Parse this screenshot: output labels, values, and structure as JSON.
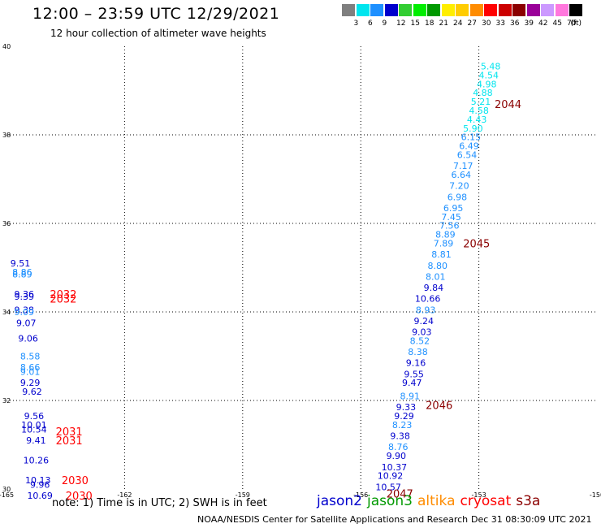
{
  "header": {
    "title": "12:00 – 23:59 UTC 12/29/2021",
    "subtitle": "12 hour collection of altimeter wave heights"
  },
  "color_scale": {
    "unit_label": "(ft)",
    "bins": [
      {
        "label": "3",
        "color": "#7f7f7f"
      },
      {
        "label": "6",
        "color": "#00e5ee"
      },
      {
        "label": "9",
        "color": "#1e90ff"
      },
      {
        "label": "12",
        "color": "#0000cd"
      },
      {
        "label": "15",
        "color": "#32cd32"
      },
      {
        "label": "18",
        "color": "#00ee00"
      },
      {
        "label": "21",
        "color": "#009900"
      },
      {
        "label": "24",
        "color": "#ffee00"
      },
      {
        "label": "27",
        "color": "#ffcc00"
      },
      {
        "label": "30",
        "color": "#ff8c00"
      },
      {
        "label": "33",
        "color": "#ff0000"
      },
      {
        "label": "36",
        "color": "#cc0000"
      },
      {
        "label": "39",
        "color": "#8b0000"
      },
      {
        "label": "42",
        "color": "#9a0099"
      },
      {
        "label": "45",
        "color": "#cc99ff"
      },
      {
        "label": "70",
        "color": "#ff77dd"
      },
      {
        "label": "",
        "color": "#000000"
      }
    ]
  },
  "chart_data": {
    "type": "scatter",
    "title": "12:00 – 23:59 UTC 12/29/2021",
    "xlim": [
      -165,
      -150
    ],
    "ylim": [
      30,
      40
    ],
    "x_ticks": [
      {
        "value": -165,
        "label": "-165"
      },
      {
        "value": -162,
        "label": "-162"
      },
      {
        "value": -159,
        "label": "-159"
      },
      {
        "value": -156,
        "label": "-156"
      },
      {
        "value": -153,
        "label": "-153"
      },
      {
        "value": -150,
        "label": "-150"
      }
    ],
    "y_ticks": [
      {
        "value": 30,
        "label": "30"
      },
      {
        "value": 32,
        "label": "32"
      },
      {
        "value": 34,
        "label": "34"
      },
      {
        "value": 36,
        "label": "36"
      },
      {
        "value": 38,
        "label": "38"
      },
      {
        "value": 40,
        "label": "40"
      }
    ],
    "grid": true,
    "points": [
      {
        "lon": -152.7,
        "lat": 39.55,
        "swh": "5.48",
        "color": "#00e5ee"
      },
      {
        "lon": -152.75,
        "lat": 39.35,
        "swh": "4.54",
        "color": "#00e5ee"
      },
      {
        "lon": -152.8,
        "lat": 39.15,
        "swh": "4.98",
        "color": "#00e5ee"
      },
      {
        "lon": -152.9,
        "lat": 38.95,
        "swh": "4.88",
        "color": "#00e5ee"
      },
      {
        "lon": -152.95,
        "lat": 38.75,
        "swh": "5.21",
        "color": "#00e5ee"
      },
      {
        "lon": -153.0,
        "lat": 38.55,
        "swh": "4.58",
        "color": "#00e5ee"
      },
      {
        "lon": -153.05,
        "lat": 38.35,
        "swh": "4.43",
        "color": "#00e5ee"
      },
      {
        "lon": -153.15,
        "lat": 38.15,
        "swh": "5.90",
        "color": "#00e5ee"
      },
      {
        "lon": -153.2,
        "lat": 37.95,
        "swh": "6.15",
        "color": "#1e90ff"
      },
      {
        "lon": -153.25,
        "lat": 37.75,
        "swh": "6.49",
        "color": "#1e90ff"
      },
      {
        "lon": -153.3,
        "lat": 37.55,
        "swh": "6.54",
        "color": "#1e90ff"
      },
      {
        "lon": -153.4,
        "lat": 37.3,
        "swh": "7.17",
        "color": "#1e90ff"
      },
      {
        "lon": -153.45,
        "lat": 37.1,
        "swh": "6.64",
        "color": "#1e90ff"
      },
      {
        "lon": -153.5,
        "lat": 36.85,
        "swh": "7.20",
        "color": "#1e90ff"
      },
      {
        "lon": -153.55,
        "lat": 36.6,
        "swh": "6.98",
        "color": "#1e90ff"
      },
      {
        "lon": -153.65,
        "lat": 36.35,
        "swh": "6.95",
        "color": "#1e90ff"
      },
      {
        "lon": -153.7,
        "lat": 36.15,
        "swh": "7.45",
        "color": "#1e90ff"
      },
      {
        "lon": -153.75,
        "lat": 35.95,
        "swh": "7.56",
        "color": "#1e90ff"
      },
      {
        "lon": -153.85,
        "lat": 35.75,
        "swh": "8.89",
        "color": "#1e90ff"
      },
      {
        "lon": -153.9,
        "lat": 35.55,
        "swh": "7.89",
        "color": "#1e90ff"
      },
      {
        "lon": -153.95,
        "lat": 35.3,
        "swh": "8.81",
        "color": "#1e90ff"
      },
      {
        "lon": -154.05,
        "lat": 35.05,
        "swh": "8.80",
        "color": "#1e90ff"
      },
      {
        "lon": -154.1,
        "lat": 34.8,
        "swh": "8.01",
        "color": "#1e90ff"
      },
      {
        "lon": -154.15,
        "lat": 34.55,
        "swh": "9.84",
        "color": "#0000cd"
      },
      {
        "lon": -154.3,
        "lat": 34.3,
        "swh": "10.66",
        "color": "#0000cd"
      },
      {
        "lon": -154.35,
        "lat": 34.05,
        "swh": "8.93",
        "color": "#1e90ff"
      },
      {
        "lon": -154.4,
        "lat": 33.8,
        "swh": "9.24",
        "color": "#0000cd"
      },
      {
        "lon": -154.45,
        "lat": 33.55,
        "swh": "9.03",
        "color": "#0000cd"
      },
      {
        "lon": -154.5,
        "lat": 33.35,
        "swh": "8.52",
        "color": "#1e90ff"
      },
      {
        "lon": -154.55,
        "lat": 33.1,
        "swh": "8.38",
        "color": "#1e90ff"
      },
      {
        "lon": -154.6,
        "lat": 32.85,
        "swh": "9.16",
        "color": "#0000cd"
      },
      {
        "lon": -154.65,
        "lat": 32.6,
        "swh": "9.55",
        "color": "#0000cd"
      },
      {
        "lon": -154.7,
        "lat": 32.4,
        "swh": "9.47",
        "color": "#0000cd"
      },
      {
        "lon": -154.75,
        "lat": 32.1,
        "swh": "8.91",
        "color": "#1e90ff"
      },
      {
        "lon": -154.85,
        "lat": 31.85,
        "swh": "9.33",
        "color": "#0000cd"
      },
      {
        "lon": -154.9,
        "lat": 31.65,
        "swh": "9.29",
        "color": "#0000cd"
      },
      {
        "lon": -154.95,
        "lat": 31.45,
        "swh": "8.23",
        "color": "#1e90ff"
      },
      {
        "lon": -155.0,
        "lat": 31.2,
        "swh": "9.38",
        "color": "#0000cd"
      },
      {
        "lon": -155.05,
        "lat": 30.95,
        "swh": "8.76",
        "color": "#1e90ff"
      },
      {
        "lon": -155.1,
        "lat": 30.75,
        "swh": "9.90",
        "color": "#0000cd"
      },
      {
        "lon": -155.15,
        "lat": 30.5,
        "swh": "10.37",
        "color": "#0000cd"
      },
      {
        "lon": -155.25,
        "lat": 30.3,
        "swh": "10.92",
        "color": "#0000cd"
      },
      {
        "lon": -155.3,
        "lat": 30.05,
        "swh": "10.57",
        "color": "#0000cd"
      },
      {
        "lon": -164.65,
        "lat": 35.1,
        "swh": "9.51",
        "color": "#0000cd"
      },
      {
        "lon": -164.6,
        "lat": 34.9,
        "swh": "8.86",
        "color": "#1e90ff"
      },
      {
        "lon": -164.6,
        "lat": 34.85,
        "swh": "8.89",
        "color": "#1e90ff"
      },
      {
        "lon": -164.55,
        "lat": 34.4,
        "swh": "9.36",
        "color": "#0000cd"
      },
      {
        "lon": -164.55,
        "lat": 34.35,
        "swh": "9.39",
        "color": "#0000cd"
      },
      {
        "lon": -164.55,
        "lat": 34.05,
        "swh": "9.38",
        "color": "#0000cd"
      },
      {
        "lon": -164.55,
        "lat": 34.0,
        "swh": "9.09",
        "color": "#1e90ff"
      },
      {
        "lon": -164.5,
        "lat": 33.75,
        "swh": "9.07",
        "color": "#0000cd"
      },
      {
        "lon": -164.45,
        "lat": 33.4,
        "swh": "9.06",
        "color": "#0000cd"
      },
      {
        "lon": -164.4,
        "lat": 33.0,
        "swh": "8.58",
        "color": "#1e90ff"
      },
      {
        "lon": -164.4,
        "lat": 32.75,
        "swh": "8.66",
        "color": "#1e90ff"
      },
      {
        "lon": -164.4,
        "lat": 32.65,
        "swh": "9.01",
        "color": "#1e90ff"
      },
      {
        "lon": -164.4,
        "lat": 32.4,
        "swh": "9.29",
        "color": "#0000cd"
      },
      {
        "lon": -164.35,
        "lat": 32.2,
        "swh": "9.62",
        "color": "#0000cd"
      },
      {
        "lon": -164.3,
        "lat": 31.65,
        "swh": "9.56",
        "color": "#0000cd"
      },
      {
        "lon": -164.3,
        "lat": 31.45,
        "swh": "10.01",
        "color": "#0000cd"
      },
      {
        "lon": -164.3,
        "lat": 31.35,
        "swh": "10.54",
        "color": "#0000cd"
      },
      {
        "lon": -164.25,
        "lat": 31.1,
        "swh": "9.41",
        "color": "#0000cd"
      },
      {
        "lon": -164.25,
        "lat": 30.65,
        "swh": "10.26",
        "color": "#0000cd"
      },
      {
        "lon": -164.2,
        "lat": 30.2,
        "swh": "10.13",
        "color": "#0000cd"
      },
      {
        "lon": -164.15,
        "lat": 30.1,
        "swh": "9.96",
        "color": "#0000cd"
      },
      {
        "lon": -164.15,
        "lat": 29.85,
        "swh": "10.69",
        "color": "#0000cd"
      }
    ],
    "track_times": [
      {
        "lon": -152.6,
        "lat": 38.7,
        "label": "2044",
        "color": "#8b0000"
      },
      {
        "lon": -153.4,
        "lat": 35.55,
        "label": "2045",
        "color": "#8b0000"
      },
      {
        "lon": -154.35,
        "lat": 31.9,
        "label": "2046",
        "color": "#8b0000"
      },
      {
        "lon": -155.35,
        "lat": 29.9,
        "label": "2047",
        "color": "#8b0000"
      },
      {
        "lon": -163.9,
        "lat": 34.4,
        "label": "2032",
        "color": "#ff0000"
      },
      {
        "lon": -163.9,
        "lat": 34.3,
        "label": "2032",
        "color": "#ff0000"
      },
      {
        "lon": -163.75,
        "lat": 31.3,
        "label": "2031",
        "color": "#ff0000"
      },
      {
        "lon": -163.75,
        "lat": 31.1,
        "label": "2031",
        "color": "#ff0000"
      },
      {
        "lon": -163.6,
        "lat": 30.2,
        "label": "2030",
        "color": "#ff0000"
      },
      {
        "lon": -163.5,
        "lat": 29.85,
        "label": "2030",
        "color": "#ff0000"
      }
    ]
  },
  "satellite_legend": [
    {
      "name": "jason2",
      "color": "#0000cd"
    },
    {
      "name": "jason3",
      "color": "#009900"
    },
    {
      "name": "altika",
      "color": "#ff8c00"
    },
    {
      "name": "cryosat",
      "color": "#ff0000"
    },
    {
      "name": "s3a",
      "color": "#8b0000"
    }
  ],
  "footer": {
    "note": "note:  1) Time is in UTC;  2) SWH is in feet",
    "credit": "NOAA/NESDIS Center for Satellite Applications and Research",
    "timestamp": "Dec 31 08:30:09 UTC 2021"
  }
}
